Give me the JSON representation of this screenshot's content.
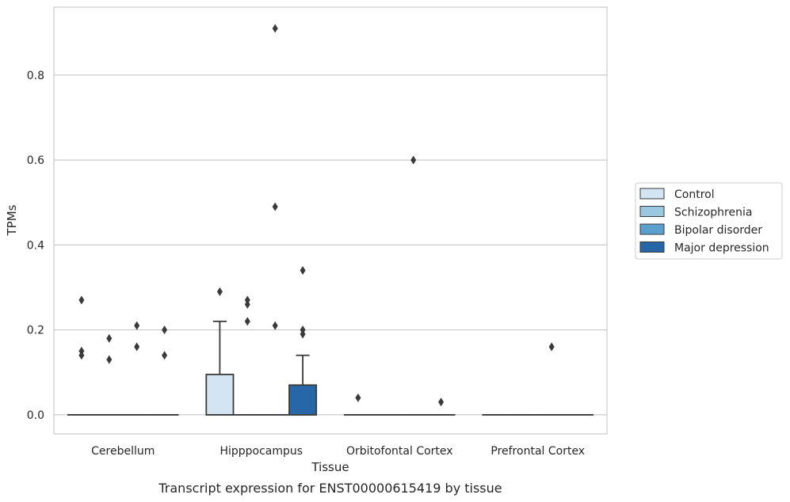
{
  "chart_data": {
    "type": "box",
    "xlabel": "Tissue",
    "ylabel": "TPMs",
    "caption": "Transcript expression for ENST00000615419 by tissue",
    "ylim": [
      -0.045,
      0.96
    ],
    "yticks": [
      0.0,
      0.2,
      0.4,
      0.6,
      0.8
    ],
    "ytick_labels": [
      "0.0",
      "0.2",
      "0.4",
      "0.6",
      "0.8"
    ],
    "grid": true,
    "legend_position": "right",
    "categories": [
      "Cerebellum",
      "Hipppocampus",
      "Orbitofontal Cortex",
      "Prefrontal Cortex"
    ],
    "series": [
      {
        "name": "Control",
        "color": "#d3e4f3",
        "boxes": [
          {
            "q1": 0,
            "median": 0,
            "q3": 0,
            "whisker_low": 0,
            "whisker_high": 0,
            "outliers": [
              0.27,
              0.15,
              0.14
            ]
          },
          {
            "q1": 0,
            "median": 0,
            "q3": 0.095,
            "whisker_low": 0,
            "whisker_high": 0.22,
            "outliers": [
              0.29
            ]
          },
          {
            "q1": 0,
            "median": 0,
            "q3": 0,
            "whisker_low": 0,
            "whisker_high": 0,
            "outliers": [
              0.04
            ]
          },
          {
            "q1": 0,
            "median": 0,
            "q3": 0,
            "whisker_low": 0,
            "whisker_high": 0,
            "outliers": []
          }
        ]
      },
      {
        "name": "Schizophrenia",
        "color": "#9ac8e0",
        "boxes": [
          {
            "q1": 0,
            "median": 0,
            "q3": 0,
            "whisker_low": 0,
            "whisker_high": 0,
            "outliers": [
              0.18,
              0.13
            ]
          },
          {
            "q1": 0,
            "median": 0,
            "q3": 0,
            "whisker_low": 0,
            "whisker_high": 0,
            "outliers": [
              0.27,
              0.26,
              0.22
            ]
          },
          {
            "q1": 0,
            "median": 0,
            "q3": 0,
            "whisker_low": 0,
            "whisker_high": 0,
            "outliers": []
          },
          {
            "q1": 0,
            "median": 0,
            "q3": 0,
            "whisker_low": 0,
            "whisker_high": 0,
            "outliers": []
          }
        ]
      },
      {
        "name": "Bipolar disorder",
        "color": "#5a9fcd",
        "boxes": [
          {
            "q1": 0,
            "median": 0,
            "q3": 0,
            "whisker_low": 0,
            "whisker_high": 0,
            "outliers": [
              0.21,
              0.16
            ]
          },
          {
            "q1": 0,
            "median": 0,
            "q3": 0,
            "whisker_low": 0,
            "whisker_high": 0,
            "outliers": [
              0.91,
              0.49,
              0.21
            ]
          },
          {
            "q1": 0,
            "median": 0,
            "q3": 0,
            "whisker_low": 0,
            "whisker_high": 0,
            "outliers": [
              0.6
            ]
          },
          {
            "q1": 0,
            "median": 0,
            "q3": 0,
            "whisker_low": 0,
            "whisker_high": 0,
            "outliers": [
              0.16
            ]
          }
        ]
      },
      {
        "name": "Major depression",
        "color": "#2767a8",
        "boxes": [
          {
            "q1": 0,
            "median": 0,
            "q3": 0,
            "whisker_low": 0,
            "whisker_high": 0,
            "outliers": [
              0.2,
              0.14
            ]
          },
          {
            "q1": 0,
            "median": 0,
            "q3": 0.07,
            "whisker_low": 0,
            "whisker_high": 0.14,
            "outliers": [
              0.34,
              0.2,
              0.19
            ]
          },
          {
            "q1": 0,
            "median": 0,
            "q3": 0,
            "whisker_low": 0,
            "whisker_high": 0,
            "outliers": [
              0.03
            ]
          },
          {
            "q1": 0,
            "median": 0,
            "q3": 0,
            "whisker_low": 0,
            "whisker_high": 0,
            "outliers": []
          }
        ]
      }
    ]
  }
}
